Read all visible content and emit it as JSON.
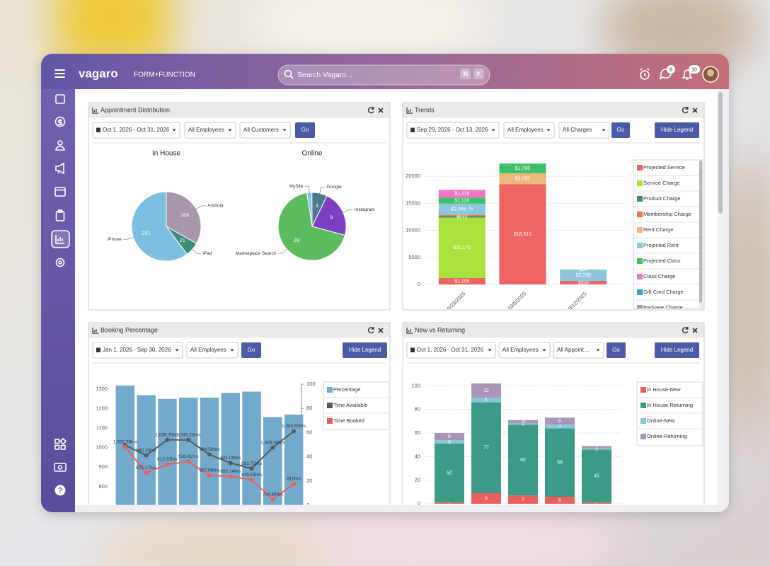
{
  "app": {
    "logo": "vagaro",
    "business": "FORM+FUNCTION",
    "search": "Search Vagaro...",
    "shortcut": [
      "⌘",
      "K"
    ],
    "message_badge": 8,
    "notification_badge": 10,
    "help": "?"
  },
  "chart_data": [
    {
      "type": "pie",
      "title": "Appointment Distribution",
      "controls": {
        "date_range": "Oct 1, 2026 - Oct 31, 2026",
        "filters": [
          "All Employees",
          "All Customers"
        ],
        "go": "Go"
      },
      "pies": [
        {
          "title": "In House",
          "categories": [
            "Android",
            "iPad",
            "iPhone"
          ],
          "values": [
            106,
            21,
            192
          ],
          "colors": [
            "#a896ab",
            "#3d8c7a",
            "#7cbfe0"
          ]
        },
        {
          "title": "Online",
          "categories": [
            "MySite",
            "Google",
            "Instagram",
            "Marketplace Search"
          ],
          "values": [
            1,
            3,
            9,
            28
          ],
          "colors": [
            "#8cc6e4",
            "#4b7a8d",
            "#7c3fc2",
            "#5cbb5e"
          ]
        }
      ]
    },
    {
      "type": "bar",
      "stacked": true,
      "title": "Trends",
      "controls": {
        "date_range": "Sep 29, 2026 - Oct 13, 2026",
        "filters": [
          "All Employees",
          "All Charges"
        ],
        "go": "Go",
        "legend_button": "Hide Legend"
      },
      "categories": [
        "9/29/2025",
        "10/5/2025",
        "10/12/2025"
      ],
      "series": [
        {
          "name": "Projected Service",
          "color": "#ec6463",
          "values": [
            1195,
            18510,
            650
          ],
          "value_labels": [
            "$1,195",
            "$18,510",
            "$650"
          ]
        },
        {
          "name": "Service Charge",
          "color": "#a9e23a",
          "values": [
            11171,
            null,
            null
          ],
          "value_labels": [
            "$11,171",
            null,
            null
          ]
        },
        {
          "name": "Product Charge",
          "color": "#3a8a76",
          "values": [
            272,
            null,
            null
          ],
          "value_labels": [
            "$272",
            null,
            null
          ]
        },
        {
          "name": "Membership Charge",
          "color": "#ee7b3e",
          "values": [
            235,
            null,
            null
          ],
          "value_labels": [
            "$235",
            null,
            null
          ]
        },
        {
          "name": "Rent Charge",
          "color": "#e9b97c",
          "values": [
            null,
            2050,
            null
          ],
          "value_labels": [
            null,
            "$2,050",
            null
          ]
        },
        {
          "name": "Projected Rent",
          "color": "#8ec5df",
          "values": [
            2066.75,
            null,
            2050
          ],
          "value_labels": [
            "$2,066.75",
            null,
            "$2,050"
          ]
        },
        {
          "name": "Projected Class",
          "color": "#3dc067",
          "values": [
            1120,
            1780,
            50
          ],
          "value_labels": [
            "$1,120",
            "$1,780",
            "$50"
          ]
        },
        {
          "name": "Class Charge",
          "color": "#f274c8",
          "values": [
            1416,
            null,
            null
          ],
          "value_labels": [
            "$1,416",
            null,
            null
          ]
        },
        {
          "name": "Gift Card Charge",
          "color": "#3b9fe9",
          "values": [
            null,
            null,
            null
          ]
        },
        {
          "name": "Package Charge",
          "color": "#a99bb6",
          "values": [
            null,
            null,
            null
          ]
        }
      ],
      "ylim": [
        0,
        22500
      ],
      "yticks": [
        0,
        5000,
        10000,
        15000,
        20000
      ],
      "grid": true,
      "legend": "right"
    },
    {
      "type": "combo",
      "title": "Booking Percentage",
      "controls": {
        "date_range": "Jan 1, 2026 - Sep 30, 2026",
        "filters": [
          "All Employees"
        ],
        "go": "Go",
        "legend_button": "Hide Legend"
      },
      "categories": [
        null,
        null,
        null,
        null,
        null,
        null,
        null,
        null,
        null
      ],
      "series": [
        {
          "name": "Percentage",
          "type": "bar",
          "axis": "y2",
          "color": "#72a9cd",
          "values": [
            99,
            91,
            88,
            89,
            89,
            93,
            94,
            73,
            75
          ]
        },
        {
          "name": "Time Available",
          "type": "line",
          "color": "#5a5a5a",
          "values": [
            1012,
            960.25,
            1039.75,
            1039.25,
            964.59,
            921.09,
            892.75,
            1000.08,
            1083.83
          ],
          "value_labels": [
            null,
            "960.25hrs",
            "1,039.75hrs",
            "1,039.25hrs",
            "964.59hrs",
            "921.09hrs",
            "892.75hrs",
            "1,000.08hrs",
            "1,083.83hrs"
          ]
        },
        {
          "name": "Time Booked",
          "type": "line",
          "color": "#ec5f5c",
          "values": [
            1002.76,
            871.17,
            913.57,
            928.41,
            857.66,
            852.14,
            835.01,
            734.84,
            815
          ],
          "value_labels": [
            "1,002.76hrs",
            "871.17hrs",
            "913.57hrs",
            "928.41hrs",
            "857.66hrs",
            "852.14hrs",
            "835.01hrs",
            "734.84hrs",
            "815hrs"
          ]
        }
      ],
      "ylim": [
        705,
        1325
      ],
      "yticks": [
        800,
        900,
        1000,
        1100,
        1200,
        1300
      ],
      "y2lim": [
        0,
        100
      ],
      "y2ticks": [
        0,
        20,
        40,
        60,
        80,
        100
      ],
      "grid": false,
      "legend": "right"
    },
    {
      "type": "bar",
      "stacked": true,
      "title": "New vs Returning",
      "controls": {
        "date_range": "Oct 1, 2026 - Oct 31, 2026",
        "filters": [
          "All Employees",
          "All Appoint…"
        ],
        "go": "Go",
        "legend_button": "Hide Legend"
      },
      "categories": [
        null,
        null,
        null,
        null,
        null
      ],
      "series": [
        {
          "name": "In House-New",
          "color": "#ec5f5c",
          "values": [
            1,
            9,
            7,
            6,
            1
          ]
        },
        {
          "name": "In House-Returning",
          "color": "#3d9a86",
          "values": [
            50,
            77,
            60,
            58,
            45
          ]
        },
        {
          "name": "Online-New",
          "color": "#8cc4de",
          "values": [
            3,
            4,
            1,
            3,
            1
          ]
        },
        {
          "name": "Online-Returning",
          "color": "#a996b5",
          "values": [
            6,
            12,
            3,
            6,
            2
          ]
        }
      ],
      "ylim": [
        0,
        105
      ],
      "yticks": [
        0,
        20,
        40,
        60,
        80,
        100
      ],
      "grid": true,
      "legend": "right"
    }
  ]
}
